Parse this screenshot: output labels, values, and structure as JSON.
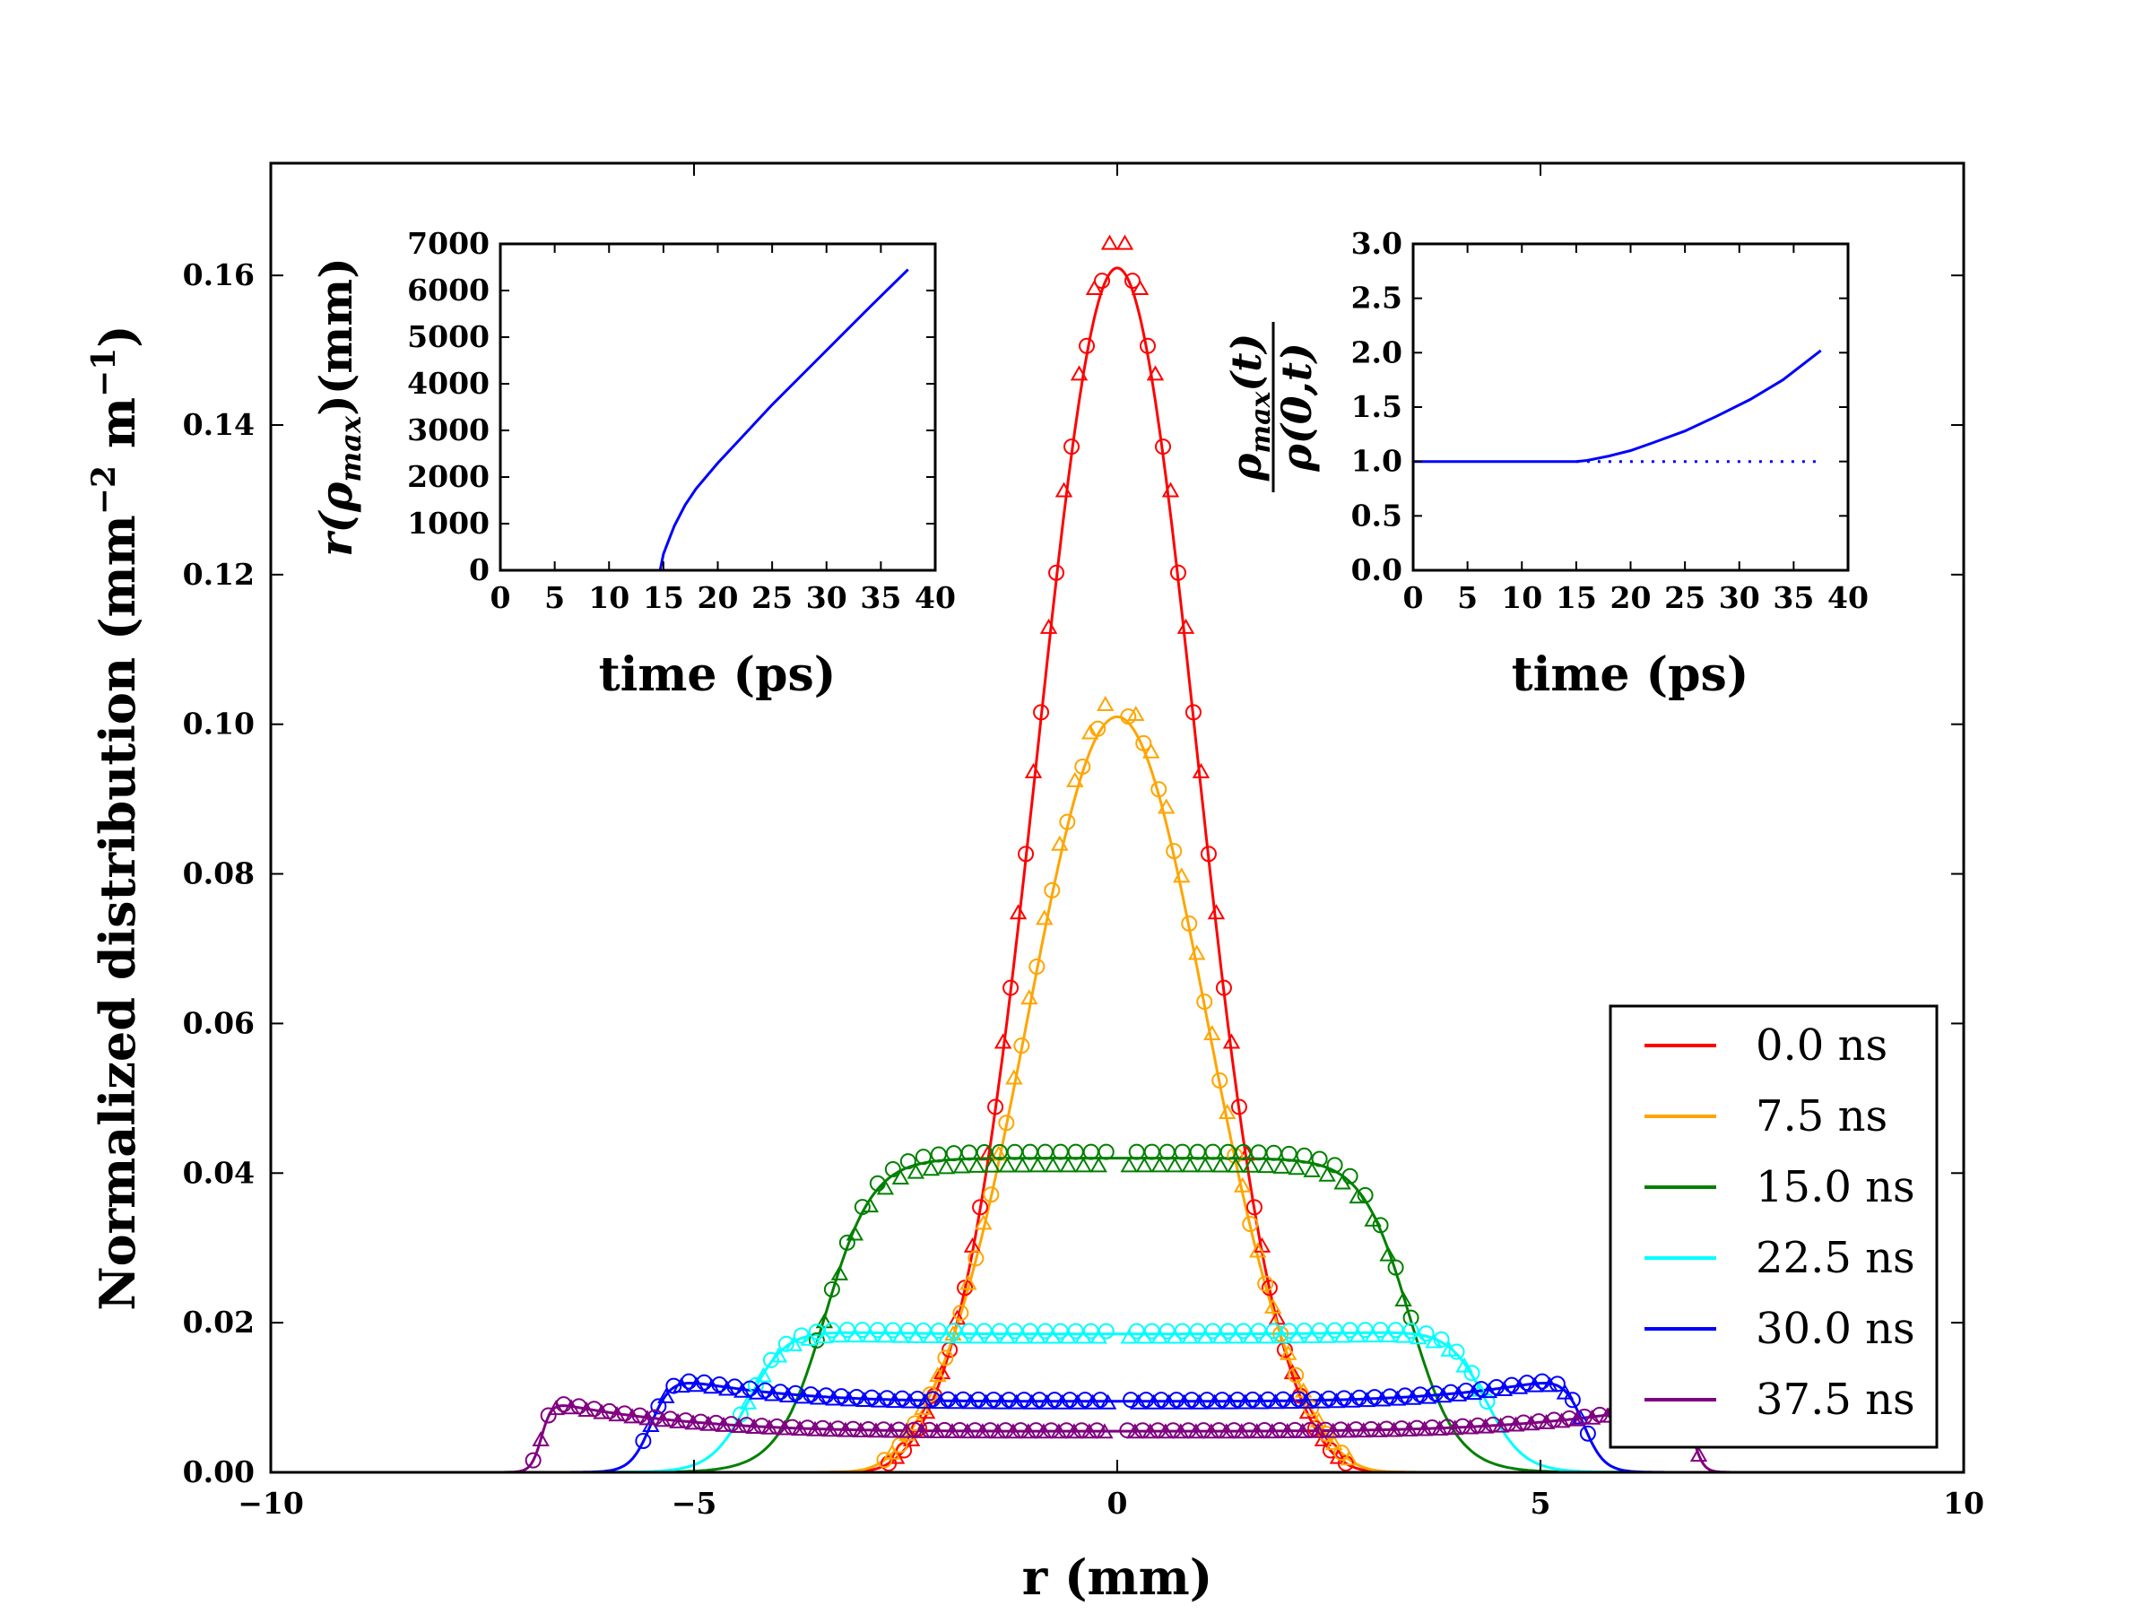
{
  "chart_data": [
    {
      "type": "line",
      "role": "main",
      "title": "",
      "xlabel": "r (mm)",
      "ylabel": "Normalized distribution (mm⁻² m⁻¹)",
      "xlim": [
        -10,
        10
      ],
      "ylim": [
        0,
        0.175
      ],
      "xticks": [
        -10,
        -5,
        0,
        5,
        10
      ],
      "xtick_labels": [
        "−10",
        "−5",
        "0",
        "5",
        "10"
      ],
      "yticks": [
        0.0,
        0.02,
        0.04,
        0.06,
        0.08,
        0.1,
        0.12,
        0.14,
        0.16
      ],
      "ytick_labels": [
        "0.00",
        "0.02",
        "0.04",
        "0.06",
        "0.08",
        "0.10",
        "0.12",
        "0.14",
        "0.16"
      ],
      "legend_position": "lower-right",
      "markers": [
        "circle",
        "triangle"
      ],
      "series": [
        {
          "name": "0.0 ns",
          "color": "#ff0000",
          "shape": "gaussian",
          "peak": 0.161,
          "sigma": 0.93,
          "edge": 2.7,
          "edge_rise": 0.2
        },
        {
          "name": "7.5 ns",
          "color": "#ffa500",
          "shape": "gaussian",
          "peak": 0.101,
          "sigma": 1.05,
          "edge": 2.75,
          "edge_rise": 0.2
        },
        {
          "name": "15.0 ns",
          "color": "#008000",
          "shape": "flattop",
          "center": 0.042,
          "edge": 3.45,
          "edge_rise": 0.28,
          "curvature": 0.0
        },
        {
          "name": "22.5 ns",
          "color": "#00ffff",
          "shape": "flattop",
          "center": 0.0185,
          "edge": 4.35,
          "edge_rise": 0.22,
          "curvature": 0.05
        },
        {
          "name": "30.0 ns",
          "color": "#0000ff",
          "shape": "flattop",
          "center": 0.0095,
          "edge": 5.5,
          "edge_rise": 0.12,
          "curvature": 0.4
        },
        {
          "name": "37.5 ns",
          "color": "#800080",
          "shape": "flattop",
          "center": 0.0055,
          "edge": 6.8,
          "edge_rise": 0.06,
          "curvature": 0.75
        }
      ]
    },
    {
      "type": "line",
      "role": "inset-left",
      "xlabel": "time (ps)",
      "ylabel": "r(ρmax)(mm)",
      "xlim": [
        0,
        40
      ],
      "ylim": [
        0,
        7000
      ],
      "xticks": [
        0,
        5,
        10,
        15,
        20,
        25,
        30,
        35,
        40
      ],
      "yticks": [
        0,
        1000,
        2000,
        3000,
        4000,
        5000,
        6000,
        7000
      ],
      "series": [
        {
          "name": "r(rho_max)",
          "color": "#0000ff",
          "style": "solid",
          "x": [
            14.7,
            15,
            15.5,
            16,
            17,
            18,
            20,
            22,
            25,
            28,
            31,
            34,
            37.5
          ],
          "y": [
            0,
            350,
            650,
            950,
            1400,
            1750,
            2300,
            2800,
            3550,
            4250,
            4950,
            5650,
            6450
          ]
        }
      ]
    },
    {
      "type": "line",
      "role": "inset-right",
      "xlabel": "time (ps)",
      "ylabel": "ρmax(t) / ρ(0,t)",
      "xlim": [
        0,
        40
      ],
      "ylim": [
        0,
        3.0
      ],
      "xticks": [
        0,
        5,
        10,
        15,
        20,
        25,
        30,
        35,
        40
      ],
      "yticks": [
        0.0,
        0.5,
        1.0,
        1.5,
        2.0,
        2.5,
        3.0
      ],
      "ytick_labels": [
        "0.0",
        "0.5",
        "1.0",
        "1.5",
        "2.0",
        "2.5",
        "3.0"
      ],
      "series": [
        {
          "name": "ratio",
          "color": "#0000ff",
          "style": "solid",
          "x": [
            0,
            15,
            16,
            18,
            20,
            22,
            25,
            28,
            31,
            34,
            37.5
          ],
          "y": [
            1.0,
            1.0,
            1.01,
            1.05,
            1.1,
            1.17,
            1.28,
            1.42,
            1.57,
            1.75,
            2.02
          ]
        },
        {
          "name": "unity",
          "color": "#0000ff",
          "style": "dotted",
          "x": [
            15,
            37.5
          ],
          "y": [
            1.0,
            1.0
          ]
        }
      ]
    }
  ],
  "labels": {
    "main_ylabel_text": "Normalized distribution (mm",
    "main_ylabel_exp1": "−2",
    "main_ylabel_mid": " m",
    "main_ylabel_exp2": "−1",
    "main_ylabel_close": ")",
    "inset_left_ylabel_r": "r(",
    "inset_left_ylabel_rho": "ρ",
    "inset_left_ylabel_sub": "max",
    "inset_left_ylabel_close": ")(mm)",
    "inset_right_num_rho": "ρ",
    "inset_right_num_sub": "max",
    "inset_right_num_t": "(t)",
    "inset_right_den": "ρ(0,t)"
  }
}
